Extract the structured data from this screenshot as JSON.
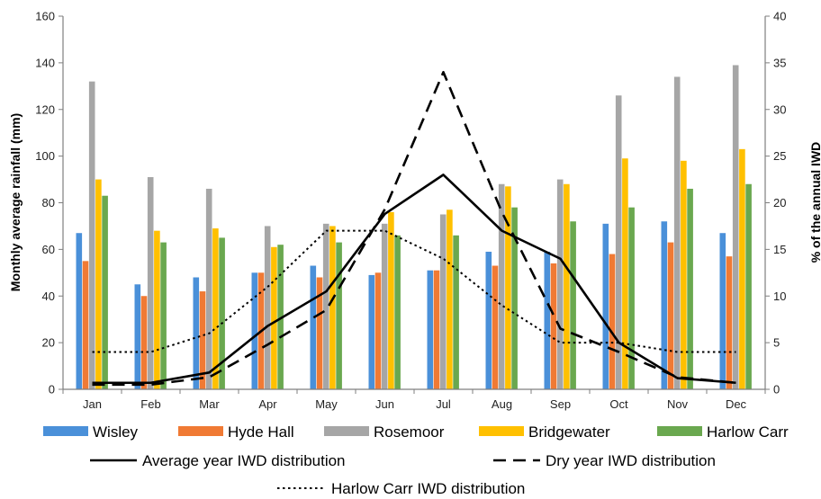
{
  "chart_data": {
    "type": "bar",
    "ylabel": "Monthly average rainfall (mm)",
    "y2label": "% of the annual IWD",
    "ylim": [
      0,
      160
    ],
    "y2lim": [
      0,
      40
    ],
    "yticks": [
      "0",
      "20",
      "40",
      "60",
      "80",
      "100",
      "120",
      "140",
      "160"
    ],
    "y2ticks": [
      "0",
      "5",
      "10",
      "15",
      "20",
      "25",
      "30",
      "35",
      "40"
    ],
    "categories": [
      "Jan",
      "Feb",
      "Mar",
      "Apr",
      "May",
      "Jun",
      "Jul",
      "Aug",
      "Sep",
      "Oct",
      "Nov",
      "Dec"
    ],
    "grid": false,
    "legend_position": "bottom",
    "series": [
      {
        "name": "Wisley",
        "color": "#4a90d9",
        "values": [
          67,
          45,
          48,
          50,
          53,
          49,
          51,
          59,
          59,
          71,
          72,
          67
        ]
      },
      {
        "name": "Hyde Hall",
        "color": "#f07a34",
        "values": [
          55,
          40,
          42,
          50,
          48,
          50,
          51,
          53,
          54,
          58,
          63,
          57
        ]
      },
      {
        "name": "Rosemoor",
        "color": "#a6a6a6",
        "values": [
          132,
          91,
          86,
          70,
          71,
          71,
          75,
          88,
          90,
          126,
          134,
          139
        ]
      },
      {
        "name": "Bridgewater",
        "color": "#ffc000",
        "values": [
          90,
          68,
          69,
          61,
          70,
          76,
          77,
          87,
          88,
          99,
          98,
          103
        ]
      },
      {
        "name": "Harlow Carr",
        "color": "#6aa84f",
        "values": [
          83,
          63,
          65,
          62,
          63,
          66,
          66,
          78,
          72,
          78,
          86,
          88
        ]
      }
    ],
    "lines": [
      {
        "name": "Average year IWD distribution",
        "style": "solid",
        "axis": "right",
        "values": [
          0.7,
          0.7,
          1.8,
          6.8,
          10.5,
          18.8,
          23,
          17,
          14,
          5,
          1.2,
          0.7
        ]
      },
      {
        "name": "Dry year IWD distribution",
        "style": "dashed",
        "axis": "right",
        "values": [
          0.5,
          0.5,
          1.3,
          4.8,
          8.5,
          19.3,
          34,
          19,
          6.5,
          4,
          1.3,
          0.7
        ]
      },
      {
        "name": "Harlow Carr IWD distribution",
        "style": "dotted",
        "axis": "right",
        "values": [
          4,
          4,
          6,
          11,
          17,
          17,
          14,
          9,
          5,
          5,
          4,
          4
        ]
      }
    ]
  }
}
